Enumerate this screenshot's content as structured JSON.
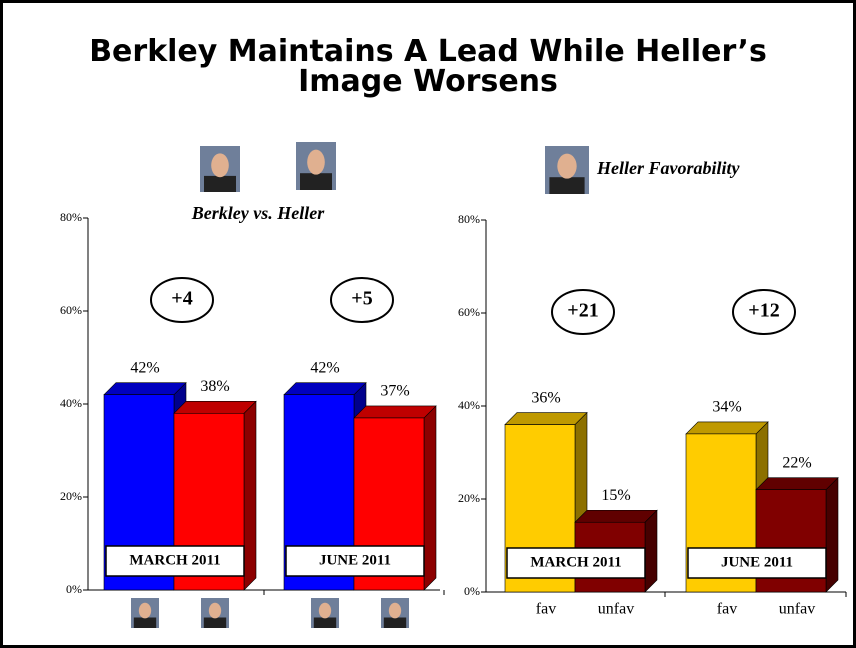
{
  "title": "Berkley Maintains A Lead While Heller’s Image Worsens",
  "chart_data": [
    {
      "type": "bar3d",
      "title": "Berkley vs. Heller",
      "categories": [
        "MARCH 2011",
        "JUNE 2011"
      ],
      "series": [
        {
          "color": "#0000ff",
          "values": [
            42,
            42
          ],
          "value_labels": [
            "42%",
            "42%"
          ]
        },
        {
          "color": "#ff0000",
          "values": [
            38,
            37
          ],
          "value_labels": [
            "38%",
            "37%"
          ]
        }
      ],
      "annotations": [
        "+4",
        "+5"
      ],
      "ylim": [
        0,
        80
      ],
      "yticks": [
        {
          "value": 0,
          "label": "0%"
        },
        {
          "value": 20,
          "label": "20%"
        },
        {
          "value": 40,
          "label": "40%"
        },
        {
          "value": 60,
          "label": "60%"
        },
        {
          "value": 80,
          "label": "80%"
        }
      ]
    },
    {
      "type": "bar3d",
      "title": "Heller Favorability",
      "categories": [
        "MARCH 2011",
        "JUNE 2011"
      ],
      "series": [
        {
          "name": "fav",
          "color": "#ffcc00",
          "values": [
            36,
            34
          ],
          "value_labels": [
            "36%",
            "34%"
          ]
        },
        {
          "name": "unfav",
          "color": "#800000",
          "values": [
            15,
            22
          ],
          "value_labels": [
            "15%",
            "22%"
          ]
        }
      ],
      "annotations": [
        "+21",
        "+12"
      ],
      "ylim": [
        0,
        80
      ],
      "yticks": [
        {
          "value": 0,
          "label": "0%"
        },
        {
          "value": 20,
          "label": "20%"
        },
        {
          "value": 40,
          "label": "40%"
        },
        {
          "value": 60,
          "label": "60%"
        },
        {
          "value": 80,
          "label": "80%"
        }
      ]
    }
  ]
}
